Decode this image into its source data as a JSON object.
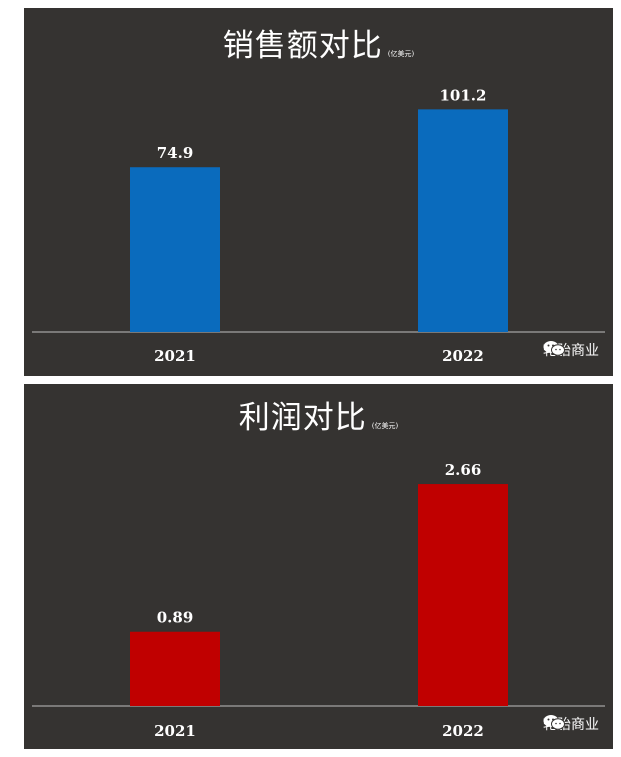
{
  "chart_data": [
    {
      "type": "bar",
      "title": "销售额对比",
      "unit": "(亿美元)",
      "categories": [
        "2021",
        "2022"
      ],
      "values": [
        74.9,
        101.2
      ],
      "value_labels": [
        "74.9",
        "101.2"
      ],
      "ylim": [
        0,
        120
      ],
      "bar_color": "#0a6bbd",
      "grid": false
    },
    {
      "type": "bar",
      "title": "利润对比",
      "unit": "(亿美元)",
      "categories": [
        "2021",
        "2022"
      ],
      "values": [
        0.89,
        2.66
      ],
      "value_labels": [
        "0.89",
        "2.66"
      ],
      "ylim": [
        0,
        3.2
      ],
      "bar_color": "#c00000",
      "grid": false
    }
  ],
  "watermark": {
    "text": "轮胎商业",
    "icon": "wechat-icon"
  },
  "colors": {
    "background": "#353331",
    "text": "#ffffff",
    "axis": "#bfbfbf"
  }
}
